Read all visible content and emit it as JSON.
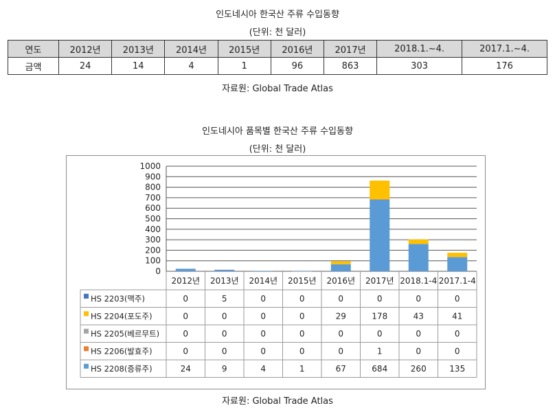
{
  "table1": {
    "title": "인도네시아 한국산 주류 수입동향",
    "unit": "(단위: 천 달러)",
    "header_label": "연도",
    "row_label": "금액",
    "years": [
      "2012년",
      "2013년",
      "2014년",
      "2015년",
      "2016년",
      "2017년",
      "2018.1.~4.",
      "2017.1.~4."
    ],
    "values": [
      "24",
      "14",
      "4",
      "1",
      "96",
      "863",
      "303",
      "176"
    ],
    "source": "자료원: Global Trade Atlas"
  },
  "chart_data": {
    "type": "bar",
    "stacked": true,
    "title": "인도네시아 품목별 한국산 주류 수입동향",
    "subtitle": "(단위: 천 달러)",
    "categories": [
      "2012년",
      "2013년",
      "2014년",
      "2015년",
      "2016년",
      "2017년",
      "2018.1-4",
      "2017.1-4"
    ],
    "ylim": [
      0,
      1000
    ],
    "yticks": [
      0,
      100,
      200,
      300,
      400,
      500,
      600,
      700,
      800,
      900,
      1000
    ],
    "grid": true,
    "legend": "data-table-below",
    "series": [
      {
        "name": "HS 2203(맥주)",
        "color": "#4472c4",
        "values": [
          0,
          5,
          0,
          0,
          0,
          0,
          0,
          0
        ]
      },
      {
        "name": "HS 2204(포도주)",
        "color": "#ffc000",
        "values": [
          0,
          0,
          0,
          0,
          29,
          178,
          43,
          41
        ]
      },
      {
        "name": "HS 2205(베르무트)",
        "color": "#a5a5a5",
        "values": [
          0,
          0,
          0,
          0,
          0,
          0,
          0,
          0
        ]
      },
      {
        "name": "HS 2206(발효주)",
        "color": "#ed7d31",
        "values": [
          0,
          0,
          0,
          0,
          0,
          1,
          0,
          0
        ]
      },
      {
        "name": "HS 2208(증류주)",
        "color": "#5b9bd5",
        "values": [
          24,
          9,
          4,
          1,
          67,
          684,
          260,
          135
        ]
      }
    ],
    "stack_order": [
      4,
      3,
      2,
      1,
      0
    ],
    "source": "자료원: Global Trade Atlas"
  }
}
